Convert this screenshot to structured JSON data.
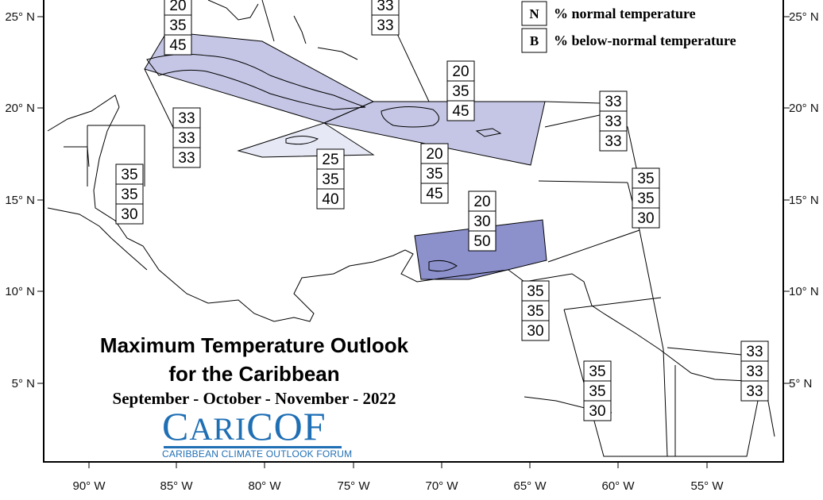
{
  "title": {
    "line1": "Maximum Temperature Outlook",
    "line2": "for the Caribbean",
    "period": "September - October - November - 2022"
  },
  "logo": {
    "name_part1": "C",
    "name_part2": "ARI",
    "name_part3": "COF",
    "subtitle": "CARIBBEAN CLIMATE OUTLOOK FORUM"
  },
  "legend": [
    {
      "key": "N",
      "label": "% normal temperature"
    },
    {
      "key": "B",
      "label": "% below-normal temperature"
    }
  ],
  "axes": {
    "x_ticks": [
      "90° W",
      "85° W",
      "80° W",
      "75° W",
      "70° W",
      "65° W",
      "60° W",
      "55° W"
    ],
    "y_ticks": [
      "25° N",
      "20° N",
      "15° N",
      "10° N",
      "5° N"
    ]
  },
  "colors": {
    "below_45": "#c5c6e5",
    "below_40": "#e6e9f5",
    "below_50": "#8c90cb",
    "outline": "#000000"
  },
  "probability_boxes": [
    {
      "region": "cuba-bahamas-west",
      "values": [
        "20",
        "35",
        "45"
      ]
    },
    {
      "region": "bahamas-north",
      "values": [
        "33",
        "33"
      ]
    },
    {
      "region": "hispaniola-north",
      "values": [
        "20",
        "35",
        "45"
      ]
    },
    {
      "region": "yucatan-channel",
      "values": [
        "33",
        "33",
        "33"
      ]
    },
    {
      "region": "belize",
      "values": [
        "35",
        "35",
        "30"
      ]
    },
    {
      "region": "jamaica",
      "values": [
        "25",
        "35",
        "40"
      ]
    },
    {
      "region": "hispaniola-south",
      "values": [
        "20",
        "35",
        "45"
      ]
    },
    {
      "region": "atlantic-east",
      "values": [
        "33",
        "33",
        "33"
      ]
    },
    {
      "region": "lesser-antilles",
      "values": [
        "35",
        "35",
        "30"
      ]
    },
    {
      "region": "abc-islands",
      "values": [
        "20",
        "30",
        "50"
      ]
    },
    {
      "region": "trinidad",
      "values": [
        "35",
        "35",
        "30"
      ]
    },
    {
      "region": "guyana",
      "values": [
        "35",
        "35",
        "30"
      ]
    },
    {
      "region": "french-guiana",
      "values": [
        "33",
        "33",
        "33"
      ]
    }
  ]
}
